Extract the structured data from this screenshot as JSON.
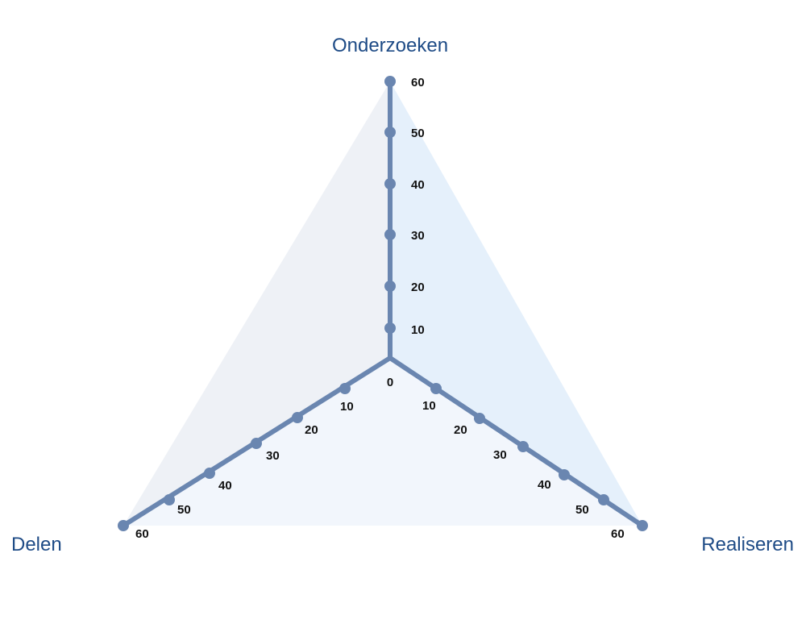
{
  "diagram": {
    "axes": [
      {
        "key": "top",
        "label": "Onderzoeken",
        "ticks": [
          "10",
          "20",
          "30",
          "40",
          "50",
          "60"
        ]
      },
      {
        "key": "right",
        "label": "Realiseren",
        "ticks": [
          "10",
          "20",
          "30",
          "40",
          "50",
          "60"
        ]
      },
      {
        "key": "left",
        "label": "Delen",
        "ticks": [
          "10",
          "20",
          "30",
          "40",
          "50",
          "60"
        ]
      }
    ],
    "origin_label": "0",
    "colors": {
      "axis": "#6a86b0",
      "title": "#1e4b86",
      "region_left": "#eef1f6",
      "region_right": "#e5f0fb",
      "region_bottom": "#f2f6fc"
    }
  }
}
